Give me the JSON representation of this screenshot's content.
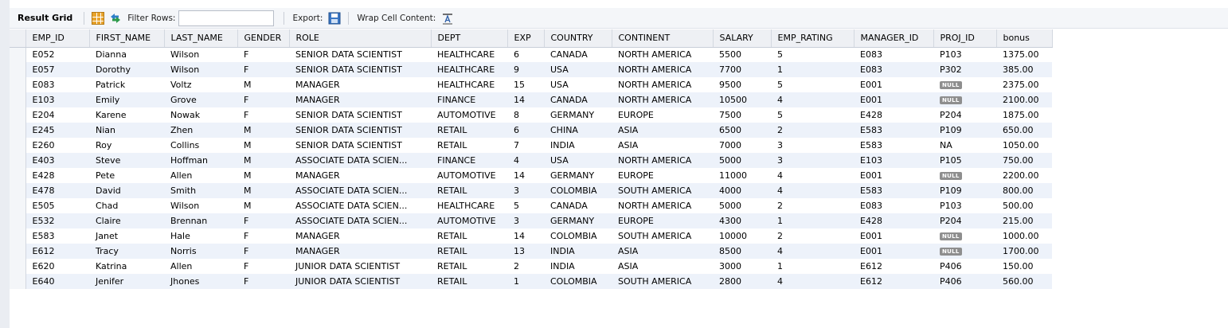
{
  "toolbar": {
    "title": "Result Grid",
    "filter_label": "Filter Rows:",
    "filter_value": "",
    "export_label": "Export:",
    "wrap_label": "Wrap Cell Content:",
    "icons": [
      "grid-icon",
      "swap-icon",
      "export-icon",
      "wrap-icon"
    ]
  },
  "table": {
    "columns": [
      "EMP_ID",
      "FIRST_NAME",
      "LAST_NAME",
      "GENDER",
      "ROLE",
      "DEPT",
      "EXP",
      "COUNTRY",
      "CONTINENT",
      "SALARY",
      "EMP_RATING",
      "MANAGER_ID",
      "PROJ_ID",
      "bonus"
    ],
    "rows": [
      [
        "E052",
        "Dianna",
        "Wilson",
        "F",
        "SENIOR DATA SCIENTIST",
        "HEALTHCARE",
        "6",
        "CANADA",
        "NORTH AMERICA",
        "5500",
        "5",
        "E083",
        "P103",
        "1375.00"
      ],
      [
        "E057",
        "Dorothy",
        "Wilson",
        "F",
        "SENIOR DATA SCIENTIST",
        "HEALTHCARE",
        "9",
        "USA",
        "NORTH AMERICA",
        "7700",
        "1",
        "E083",
        "P302",
        "385.00"
      ],
      [
        "E083",
        "Patrick",
        "Voltz",
        "M",
        "MANAGER",
        "HEALTHCARE",
        "15",
        "USA",
        "NORTH AMERICA",
        "9500",
        "5",
        "E001",
        "NULL",
        "2375.00"
      ],
      [
        "E103",
        "Emily",
        "Grove",
        "F",
        "MANAGER",
        "FINANCE",
        "14",
        "CANADA",
        "NORTH AMERICA",
        "10500",
        "4",
        "E001",
        "NULL",
        "2100.00"
      ],
      [
        "E204",
        "Karene",
        "Nowak",
        "F",
        "SENIOR DATA SCIENTIST",
        "AUTOMOTIVE",
        "8",
        "GERMANY",
        "EUROPE",
        "7500",
        "5",
        "E428",
        "P204",
        "1875.00"
      ],
      [
        "E245",
        "Nian",
        "Zhen",
        "M",
        "SENIOR DATA SCIENTIST",
        "RETAIL",
        "6",
        "CHINA",
        "ASIA",
        "6500",
        "2",
        "E583",
        "P109",
        "650.00"
      ],
      [
        "E260",
        "Roy",
        "Collins",
        "M",
        "SENIOR DATA SCIENTIST",
        "RETAIL",
        "7",
        "INDIA",
        "ASIA",
        "7000",
        "3",
        "E583",
        "NA",
        "1050.00"
      ],
      [
        "E403",
        "Steve",
        "Hoffman",
        "M",
        "ASSOCIATE DATA SCIEN...",
        "FINANCE",
        "4",
        "USA",
        "NORTH AMERICA",
        "5000",
        "3",
        "E103",
        "P105",
        "750.00"
      ],
      [
        "E428",
        "Pete",
        "Allen",
        "M",
        "MANAGER",
        "AUTOMOTIVE",
        "14",
        "GERMANY",
        "EUROPE",
        "11000",
        "4",
        "E001",
        "NULL",
        "2200.00"
      ],
      [
        "E478",
        "David",
        "Smith",
        "M",
        "ASSOCIATE DATA SCIEN...",
        "RETAIL",
        "3",
        "COLOMBIA",
        "SOUTH AMERICA",
        "4000",
        "4",
        "E583",
        "P109",
        "800.00"
      ],
      [
        "E505",
        "Chad",
        "Wilson",
        "M",
        "ASSOCIATE DATA SCIEN...",
        "HEALTHCARE",
        "5",
        "CANADA",
        "NORTH AMERICA",
        "5000",
        "2",
        "E083",
        "P103",
        "500.00"
      ],
      [
        "E532",
        "Claire",
        "Brennan",
        "F",
        "ASSOCIATE DATA SCIEN...",
        "AUTOMOTIVE",
        "3",
        "GERMANY",
        "EUROPE",
        "4300",
        "1",
        "E428",
        "P204",
        "215.00"
      ],
      [
        "E583",
        "Janet",
        "Hale",
        "F",
        "MANAGER",
        "RETAIL",
        "14",
        "COLOMBIA",
        "SOUTH AMERICA",
        "10000",
        "2",
        "E001",
        "NULL",
        "1000.00"
      ],
      [
        "E612",
        "Tracy",
        "Norris",
        "F",
        "MANAGER",
        "RETAIL",
        "13",
        "INDIA",
        "ASIA",
        "8500",
        "4",
        "E001",
        "NULL",
        "1700.00"
      ],
      [
        "E620",
        "Katrina",
        "Allen",
        "F",
        "JUNIOR DATA SCIENTIST",
        "RETAIL",
        "2",
        "INDIA",
        "ASIA",
        "3000",
        "1",
        "E612",
        "P406",
        "150.00"
      ],
      [
        "E640",
        "Jenifer",
        "Jhones",
        "F",
        "JUNIOR DATA SCIENTIST",
        "RETAIL",
        "1",
        "COLOMBIA",
        "SOUTH AMERICA",
        "2800",
        "4",
        "E612",
        "P406",
        "560.00"
      ]
    ]
  }
}
